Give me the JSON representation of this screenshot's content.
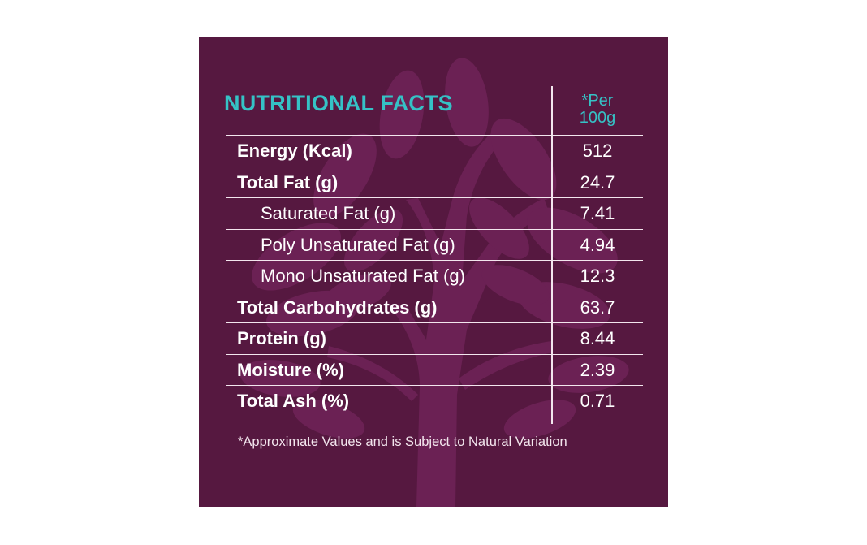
{
  "panel": {
    "background_color": "#561840",
    "accent_color": "#35c2c6",
    "watermark": "tree-icon"
  },
  "table": {
    "title": "NUTRITIONAL FACTS",
    "per_header_line1": "*Per",
    "per_header_line2": "100g",
    "rows": [
      {
        "label": "Energy (Kcal)",
        "value": "512",
        "bold": true,
        "indent": false
      },
      {
        "label": "Total Fat (g)",
        "value": "24.7",
        "bold": true,
        "indent": false
      },
      {
        "label": "Saturated Fat (g)",
        "value": "7.41",
        "bold": false,
        "indent": true
      },
      {
        "label": "Poly Unsaturated Fat (g)",
        "value": "4.94",
        "bold": false,
        "indent": true
      },
      {
        "label": "Mono Unsaturated Fat (g)",
        "value": "12.3",
        "bold": false,
        "indent": true
      },
      {
        "label": "Total Carbohydrates (g)",
        "value": "63.7",
        "bold": true,
        "indent": false
      },
      {
        "label": "Protein (g)",
        "value": "8.44",
        "bold": true,
        "indent": false
      },
      {
        "label": "Moisture (%)",
        "value": "2.39",
        "bold": true,
        "indent": false
      },
      {
        "label": "Total Ash (%)",
        "value": "0.71",
        "bold": true,
        "indent": false
      }
    ]
  },
  "footnote": "*Approximate Values and is Subject to Natural Variation"
}
